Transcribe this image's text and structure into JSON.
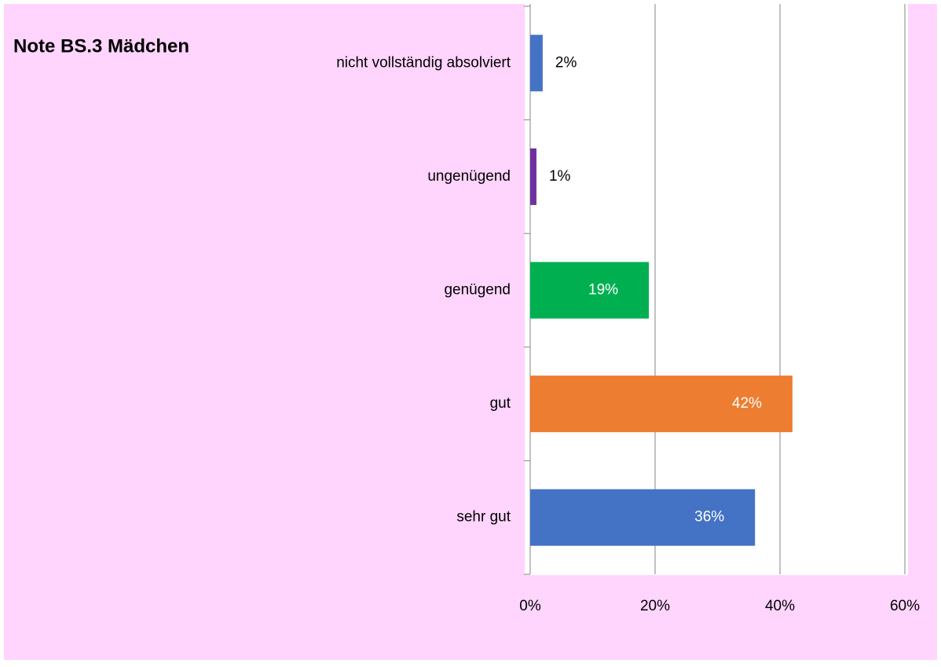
{
  "chart_data": {
    "type": "barh",
    "title": "Note BS.3 Mädchen",
    "categories": [
      "nicht vollständig absolviert",
      "ungenügend",
      "genügend",
      "gut",
      "sehr gut"
    ],
    "values": [
      2,
      1,
      19,
      42,
      36
    ],
    "value_labels": [
      "2%",
      "1%",
      "19%",
      "42%",
      "36%"
    ],
    "colors": [
      "#4472c4",
      "#7030a0",
      "#00b050",
      "#ed7d31",
      "#4472c4"
    ],
    "xlim": [
      0,
      60
    ],
    "xticks": [
      {
        "value": 0,
        "label": "0%"
      },
      {
        "value": 20,
        "label": "20%"
      },
      {
        "value": 40,
        "label": "40%"
      },
      {
        "value": 60,
        "label": "60%"
      }
    ],
    "grid": true
  }
}
